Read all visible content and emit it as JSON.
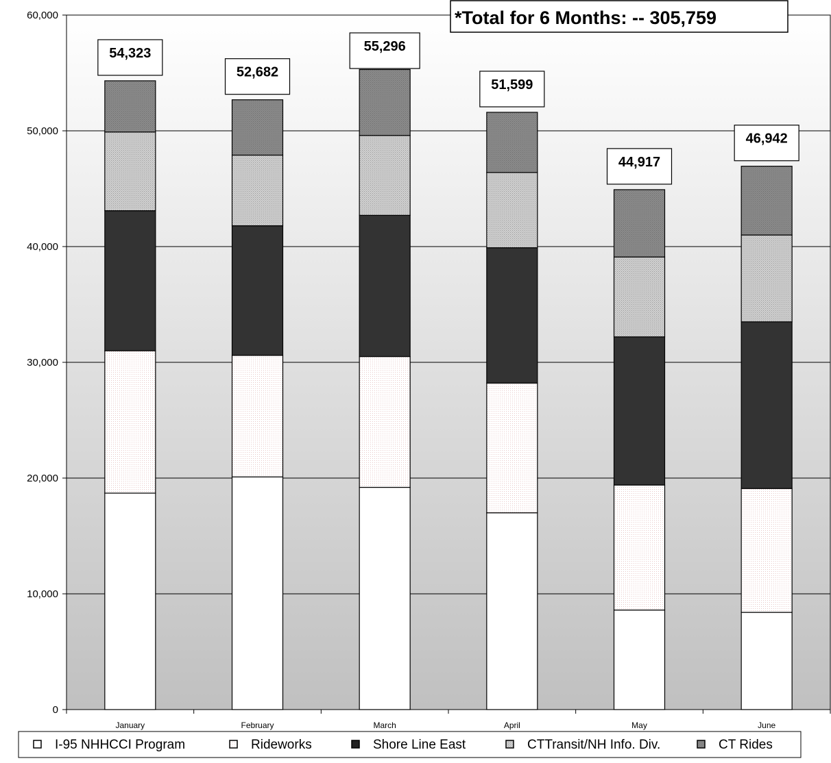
{
  "chart_data": {
    "type": "bar",
    "stacked": true,
    "categories": [
      "January",
      "February",
      "March",
      "April",
      "May",
      "June"
    ],
    "series": [
      {
        "name": "I-95 NHHCCI Program",
        "values": [
          18700,
          20100,
          19200,
          17000,
          8600,
          8400
        ],
        "color": "#ffffff",
        "pattern": "none"
      },
      {
        "name": "Rideworks",
        "values": [
          12300,
          10500,
          11300,
          11200,
          10800,
          10700
        ],
        "color": "#fdf9f9",
        "pattern": "fine-dots"
      },
      {
        "name": "Shore Line East",
        "values": [
          12100,
          11200,
          12200,
          11700,
          12800,
          14400
        ],
        "color": "#333333",
        "pattern": "none"
      },
      {
        "name": "CTTransit/NH Info. Div.",
        "values": [
          6800,
          6100,
          6900,
          6500,
          6900,
          7500
        ],
        "color": "#c4c4c4",
        "pattern": "dots"
      },
      {
        "name": "CT Rides",
        "values": [
          4423,
          4782,
          5696,
          5199,
          5817,
          5942
        ],
        "color": "#898989",
        "pattern": "dots"
      }
    ],
    "totals": [
      54323,
      52682,
      55296,
      51599,
      44917,
      46942
    ],
    "total_labels": [
      "54,323",
      "52,682",
      "55,296",
      "51,599",
      "44,917",
      "46,942"
    ],
    "headline": "*Total for 6 Months: -- 305,759",
    "yticks": [
      0,
      10000,
      20000,
      30000,
      40000,
      50000,
      60000
    ],
    "ytick_labels": [
      "0",
      "10,000",
      "20,000",
      "30,000",
      "40,000",
      "50,000",
      "60,000"
    ],
    "ylim": [
      0,
      60000
    ],
    "grid": true,
    "legend_position": "bottom",
    "background": "gradient white-to-gray"
  }
}
